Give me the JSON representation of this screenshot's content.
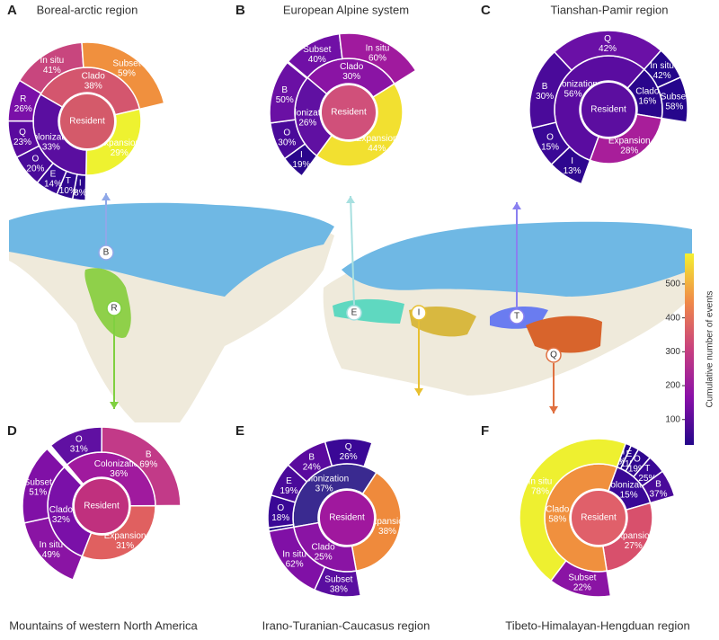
{
  "chart_data": [
    {
      "type": "sunburst",
      "panel": "A",
      "title": "Boreal-arctic region",
      "center": "Resident",
      "center_color": "#d45a6a",
      "groups": [
        {
          "name": "Clado",
          "value": 38,
          "value_label": "38%",
          "color": "#d4566e",
          "children": [
            {
              "name": "In situ",
              "value": 41,
              "value_label": "41%",
              "color": "#c8467e"
            },
            {
              "name": "Subset",
              "value": 59,
              "value_label": "59%",
              "color": "#f0903e"
            }
          ]
        },
        {
          "name": "Expansion",
          "value": 29,
          "value_label": "29%",
          "color": "#eef230",
          "children": []
        },
        {
          "name": "Colonization",
          "value": 33,
          "value_label": "33%",
          "color": "#5a0ea0",
          "children": [
            {
              "name": "I",
              "value": 8,
              "value_label": "8%",
              "color": "#2a068c"
            },
            {
              "name": "T",
              "value": 10,
              "value_label": "10%",
              "color": "#30078f"
            },
            {
              "name": "E",
              "value": 14,
              "value_label": "14%",
              "color": "#3a0896"
            },
            {
              "name": "O",
              "value": 20,
              "value_label": "20%",
              "color": "#4a0a9a"
            },
            {
              "name": "Q",
              "value": 23,
              "value_label": "23%",
              "color": "#5a0a9e"
            },
            {
              "name": "R",
              "value": 26,
              "value_label": "26%",
              "color": "#7a10a8"
            }
          ]
        }
      ]
    },
    {
      "type": "sunburst",
      "panel": "B",
      "title": "European Alpine system",
      "center": "Resident",
      "center_color": "#d0507a",
      "groups": [
        {
          "name": "Clado",
          "value": 30,
          "value_label": "30%",
          "color": "#8a14a4",
          "children": [
            {
              "name": "Subset",
              "value": 40,
              "value_label": "40%",
              "color": "#7010a6"
            },
            {
              "name": "In situ",
              "value": 60,
              "value_label": "60%",
              "color": "#a01a9e"
            }
          ]
        },
        {
          "name": "Expansion",
          "value": 44,
          "value_label": "44%",
          "color": "#f2e030",
          "children": []
        },
        {
          "name": "Colonization",
          "value": 26,
          "value_label": "26%",
          "color": "#6010a2",
          "children": [
            {
              "name": "I",
              "value": 19,
              "value_label": "19%",
              "color": "#2a068c"
            },
            {
              "name": "O",
              "value": 30,
              "value_label": "30%",
              "color": "#4a0a9a"
            },
            {
              "name": "B",
              "value": 50,
              "value_label": "50%",
              "color": "#6a10a4"
            }
          ]
        }
      ]
    },
    {
      "type": "sunburst",
      "panel": "C",
      "title": "Tianshan-Pamir region",
      "center": "Resident",
      "center_color": "#5c0ea0",
      "groups": [
        {
          "name": "Colonization",
          "value": 56,
          "value_label": "56%",
          "color": "#5a0ca0",
          "children": [
            {
              "name": "I",
              "value": 13,
              "value_label": "13%",
              "color": "#2e078f"
            },
            {
              "name": "O",
              "value": 15,
              "value_label": "15%",
              "color": "#3a0896"
            },
            {
              "name": "B",
              "value": 30,
              "value_label": "30%",
              "color": "#4a0a9a"
            },
            {
              "name": "Q",
              "value": 42,
              "value_label": "42%",
              "color": "#6a10a6"
            }
          ]
        },
        {
          "name": "Clado",
          "value": 16,
          "value_label": "16%",
          "color": "#2a068c",
          "children": [
            {
              "name": "In situ",
              "value": 42,
              "value_label": "42%",
              "color": "#24068a"
            },
            {
              "name": "Subset",
              "value": 58,
              "value_label": "58%",
              "color": "#26068c"
            }
          ]
        },
        {
          "name": "Expansion",
          "value": 28,
          "value_label": "28%",
          "color": "#a81e9a",
          "children": []
        }
      ]
    },
    {
      "type": "sunburst",
      "panel": "D",
      "title": "Mountains of western North America",
      "center": "Resident",
      "center_color": "#c0307e",
      "groups": [
        {
          "name": "Colonization",
          "value": 36,
          "value_label": "36%",
          "color": "#a01a9e",
          "children": [
            {
              "name": "O",
              "value": 31,
              "value_label": "31%",
              "color": "#6010a2"
            },
            {
              "name": "B",
              "value": 69,
              "value_label": "69%",
              "color": "#c23a88"
            }
          ]
        },
        {
          "name": "Expansion",
          "value": 31,
          "value_label": "31%",
          "color": "#e06060",
          "children": []
        },
        {
          "name": "Clado",
          "value": 32,
          "value_label": "32%",
          "color": "#7a10a8",
          "children": [
            {
              "name": "In situ",
              "value": 49,
              "value_label": "49%",
              "color": "#8a14a4"
            },
            {
              "name": "Subset",
              "value": 51,
              "value_label": "51%",
              "color": "#8010a6"
            }
          ]
        }
      ]
    },
    {
      "type": "sunburst",
      "panel": "E",
      "title": "Irano-Turanian-Caucasus region",
      "center": "Resident",
      "center_color": "#a0189e",
      "groups": [
        {
          "name": "Colonization",
          "value": 37,
          "value_label": "37%",
          "color": "#3a2a90",
          "children": [
            {
              "name": "T",
              "value": 2,
              "value_label": "2%",
              "color": "#24068a"
            },
            {
              "name": "O",
              "value": 18,
              "value_label": "18%",
              "color": "#3a0896"
            },
            {
              "name": "E",
              "value": 19,
              "value_label": "19%",
              "color": "#4a0a9a"
            },
            {
              "name": "B",
              "value": 24,
              "value_label": "24%",
              "color": "#5a0a9e"
            },
            {
              "name": "Q",
              "value": 26,
              "value_label": "26%",
              "color": "#3a0896"
            }
          ]
        },
        {
          "name": "Expansion",
          "value": 38,
          "value_label": "38%",
          "color": "#ef8a3c",
          "children": []
        },
        {
          "name": "Clado",
          "value": 25,
          "value_label": "25%",
          "color": "#8a14a4",
          "children": [
            {
              "name": "Subset",
              "value": 38,
              "value_label": "38%",
              "color": "#5a0ea0"
            },
            {
              "name": "In situ",
              "value": 62,
              "value_label": "62%",
              "color": "#8010a6"
            }
          ]
        }
      ]
    },
    {
      "type": "sunburst",
      "panel": "F",
      "title": "Tibeto-Himalayan-Hengduan region",
      "center": "Resident",
      "center_color": "#e0606a",
      "groups": [
        {
          "name": "Colonization",
          "value": 15,
          "value_label": "15%",
          "color": "#3a0896",
          "children": [
            {
              "name": "I",
              "value": 8,
              "value_label": "8%",
              "color": "#24068a"
            },
            {
              "name": "E",
              "value": 11,
              "value_label": "11%",
              "color": "#2a068c"
            },
            {
              "name": "O",
              "value": 19,
              "value_label": "19%",
              "color": "#30078f"
            },
            {
              "name": "T",
              "value": 25,
              "value_label": "25%",
              "color": "#3a0896"
            },
            {
              "name": "B",
              "value": 37,
              "value_label": "37%",
              "color": "#4a0a9a"
            }
          ]
        },
        {
          "name": "Expansion",
          "value": 27,
          "value_label": "27%",
          "color": "#d8506c",
          "children": []
        },
        {
          "name": "Clado",
          "value": 58,
          "value_label": "58%",
          "color": "#f0903e",
          "children": [
            {
              "name": "Subset",
              "value": 22,
              "value_label": "22%",
              "color": "#8a14a4"
            },
            {
              "name": "In situ",
              "value": 78,
              "value_label": "78%",
              "color": "#eef030"
            }
          ]
        }
      ]
    },
    {
      "type": "colorbar",
      "ylabel": "Cumulative number of events",
      "ylim": [
        25,
        590
      ],
      "yticks": [
        100,
        200,
        300,
        400,
        500
      ],
      "colors": [
        "#24068a",
        "#8a10a8",
        "#c8407e",
        "#f08a48",
        "#f4f030"
      ]
    }
  ],
  "map": {
    "markers": [
      "B",
      "R",
      "E",
      "I",
      "T",
      "Q"
    ]
  }
}
